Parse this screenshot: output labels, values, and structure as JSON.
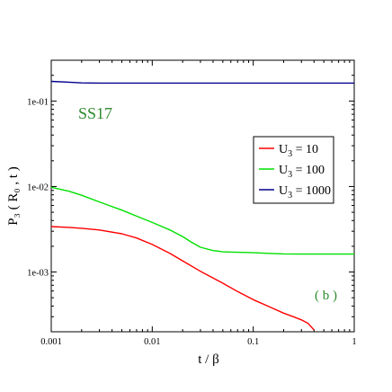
{
  "chart_data": {
    "type": "line",
    "title": "",
    "xlabel": "t / β",
    "ylabel": "P₃ ( R₀ , t )",
    "x_scale": "log",
    "y_scale": "log",
    "xlim": [
      0.001,
      1
    ],
    "ylim": [
      0.0002,
      0.3
    ],
    "x_ticks": [
      {
        "value": 0.001,
        "label": "0.001"
      },
      {
        "value": 0.01,
        "label": "0.01"
      },
      {
        "value": 0.1,
        "label": "0.1"
      },
      {
        "value": 1,
        "label": "1"
      }
    ],
    "y_ticks": [
      {
        "value": 0.001,
        "label": "1e-03"
      },
      {
        "value": 0.01,
        "label": "1e-02"
      },
      {
        "value": 0.1,
        "label": "1e-01"
      }
    ],
    "annotations": {
      "system_label": "SS17",
      "system_label_color": "#2e8b2e",
      "panel_label": "( b )",
      "panel_label_color": "#2e8b2e"
    },
    "legend": {
      "placement": "right",
      "entries": [
        {
          "prefix": "U",
          "sub": "3",
          "suffix": " = 10",
          "color": "#ff0000"
        },
        {
          "prefix": "U",
          "sub": "3",
          "suffix": " = 100",
          "color": "#00e000"
        },
        {
          "prefix": "U",
          "sub": "3",
          "suffix": " = 1000",
          "color": "#00008b"
        }
      ]
    },
    "series": [
      {
        "key": "U3 = 10",
        "color": "#ff0000",
        "x": [
          0.001,
          0.0015,
          0.002,
          0.003,
          0.005,
          0.007,
          0.01,
          0.015,
          0.02,
          0.03,
          0.05,
          0.07,
          0.1,
          0.15,
          0.2,
          0.25,
          0.3,
          0.35,
          0.4
        ],
        "y": [
          0.0034,
          0.00333,
          0.00325,
          0.0031,
          0.0028,
          0.0025,
          0.0021,
          0.00165,
          0.00135,
          0.00102,
          0.00074,
          0.00059,
          0.000475,
          0.000385,
          0.00033,
          0.0003,
          0.000275,
          0.00025,
          0.00021
        ]
      },
      {
        "key": "U3 = 100",
        "color": "#00e000",
        "x": [
          0.001,
          0.0015,
          0.002,
          0.003,
          0.005,
          0.007,
          0.01,
          0.015,
          0.02,
          0.025,
          0.03,
          0.04,
          0.05,
          0.07,
          0.1,
          0.15,
          0.2,
          0.3,
          0.5,
          1
        ],
        "y": [
          0.0098,
          0.0088,
          0.0079,
          0.0066,
          0.0053,
          0.0045,
          0.0038,
          0.0031,
          0.0026,
          0.0022,
          0.00195,
          0.00178,
          0.00172,
          0.0017,
          0.00168,
          0.00165,
          0.00163,
          0.00162,
          0.00162,
          0.00162
        ]
      },
      {
        "key": "U3 = 1000",
        "color": "#00008b",
        "x": [
          0.001,
          0.0015,
          0.002,
          0.003,
          0.005,
          0.01,
          0.03,
          0.1,
          0.3,
          1
        ],
        "y": [
          0.17,
          0.166,
          0.163,
          0.162,
          0.162,
          0.162,
          0.162,
          0.162,
          0.162,
          0.162
        ]
      }
    ]
  }
}
